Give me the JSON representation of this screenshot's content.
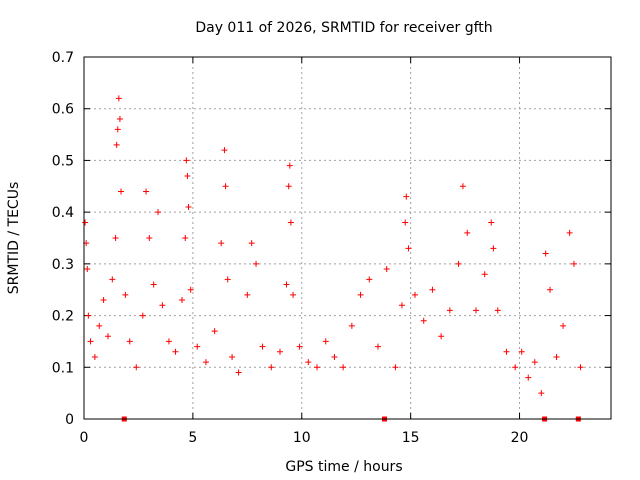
{
  "chart_data": {
    "type": "scatter",
    "title": "Day 011 of 2026, SRMTID for receiver gfth",
    "xlabel": "GPS time / hours",
    "ylabel": "SRMTID / TECUs",
    "xlim": [
      0,
      24.2
    ],
    "ylim": [
      0,
      0.7
    ],
    "xticks": [
      0,
      5,
      10,
      15,
      20
    ],
    "xtick_labels": [
      "0",
      "5",
      "10",
      "15",
      "20"
    ],
    "yticks": [
      0,
      0.1,
      0.2,
      0.3,
      0.4,
      0.5,
      0.6,
      0.7
    ],
    "ytick_labels": [
      "0",
      "0.1",
      "0.2",
      "0.3",
      "0.4",
      "0.5",
      "0.6",
      "0.7"
    ],
    "grid": true,
    "marker": "plus",
    "color": "#ff0000",
    "series": [
      {
        "name": "SRMTID",
        "x": [
          0.05,
          0.1,
          0.15,
          0.2,
          0.3,
          0.5,
          0.7,
          0.9,
          1.1,
          1.3,
          1.45,
          1.5,
          1.55,
          1.6,
          1.65,
          1.7,
          1.9,
          2.1,
          2.4,
          2.7,
          2.85,
          3.0,
          3.2,
          3.4,
          3.6,
          3.9,
          4.2,
          4.5,
          4.65,
          4.7,
          4.75,
          4.8,
          4.9,
          5.2,
          5.6,
          6.0,
          6.3,
          6.45,
          6.5,
          6.6,
          6.8,
          7.1,
          7.5,
          7.7,
          7.9,
          8.2,
          8.6,
          9.0,
          9.3,
          9.4,
          9.45,
          9.5,
          9.6,
          9.9,
          10.3,
          10.7,
          11.1,
          11.5,
          11.9,
          12.3,
          12.7,
          13.1,
          13.5,
          13.9,
          14.3,
          14.6,
          14.75,
          14.8,
          14.9,
          15.2,
          15.6,
          16.0,
          16.4,
          16.8,
          17.2,
          17.4,
          17.6,
          18.0,
          18.4,
          18.7,
          18.8,
          19.0,
          19.4,
          19.8,
          20.1,
          20.4,
          20.7,
          21.0,
          21.2,
          21.4,
          21.7,
          22.0,
          22.3,
          22.5,
          22.8
        ],
        "y": [
          0.38,
          0.34,
          0.29,
          0.2,
          0.15,
          0.12,
          0.18,
          0.23,
          0.16,
          0.27,
          0.35,
          0.53,
          0.56,
          0.62,
          0.58,
          0.44,
          0.24,
          0.15,
          0.1,
          0.2,
          0.44,
          0.35,
          0.26,
          0.4,
          0.22,
          0.15,
          0.13,
          0.23,
          0.35,
          0.5,
          0.47,
          0.41,
          0.25,
          0.14,
          0.11,
          0.17,
          0.34,
          0.52,
          0.45,
          0.27,
          0.12,
          0.09,
          0.24,
          0.34,
          0.3,
          0.14,
          0.1,
          0.13,
          0.26,
          0.45,
          0.49,
          0.38,
          0.24,
          0.14,
          0.11,
          0.1,
          0.15,
          0.12,
          0.1,
          0.18,
          0.24,
          0.27,
          0.14,
          0.29,
          0.1,
          0.22,
          0.38,
          0.43,
          0.33,
          0.24,
          0.19,
          0.25,
          0.16,
          0.21,
          0.3,
          0.45,
          0.36,
          0.21,
          0.28,
          0.38,
          0.33,
          0.21,
          0.13,
          0.1,
          0.13,
          0.08,
          0.11,
          0.05,
          0.32,
          0.25,
          0.12,
          0.18,
          0.36,
          0.3,
          0.1
        ]
      }
    ],
    "zero_markers_x": [
      1.85,
      13.8,
      21.15,
      22.7
    ]
  }
}
